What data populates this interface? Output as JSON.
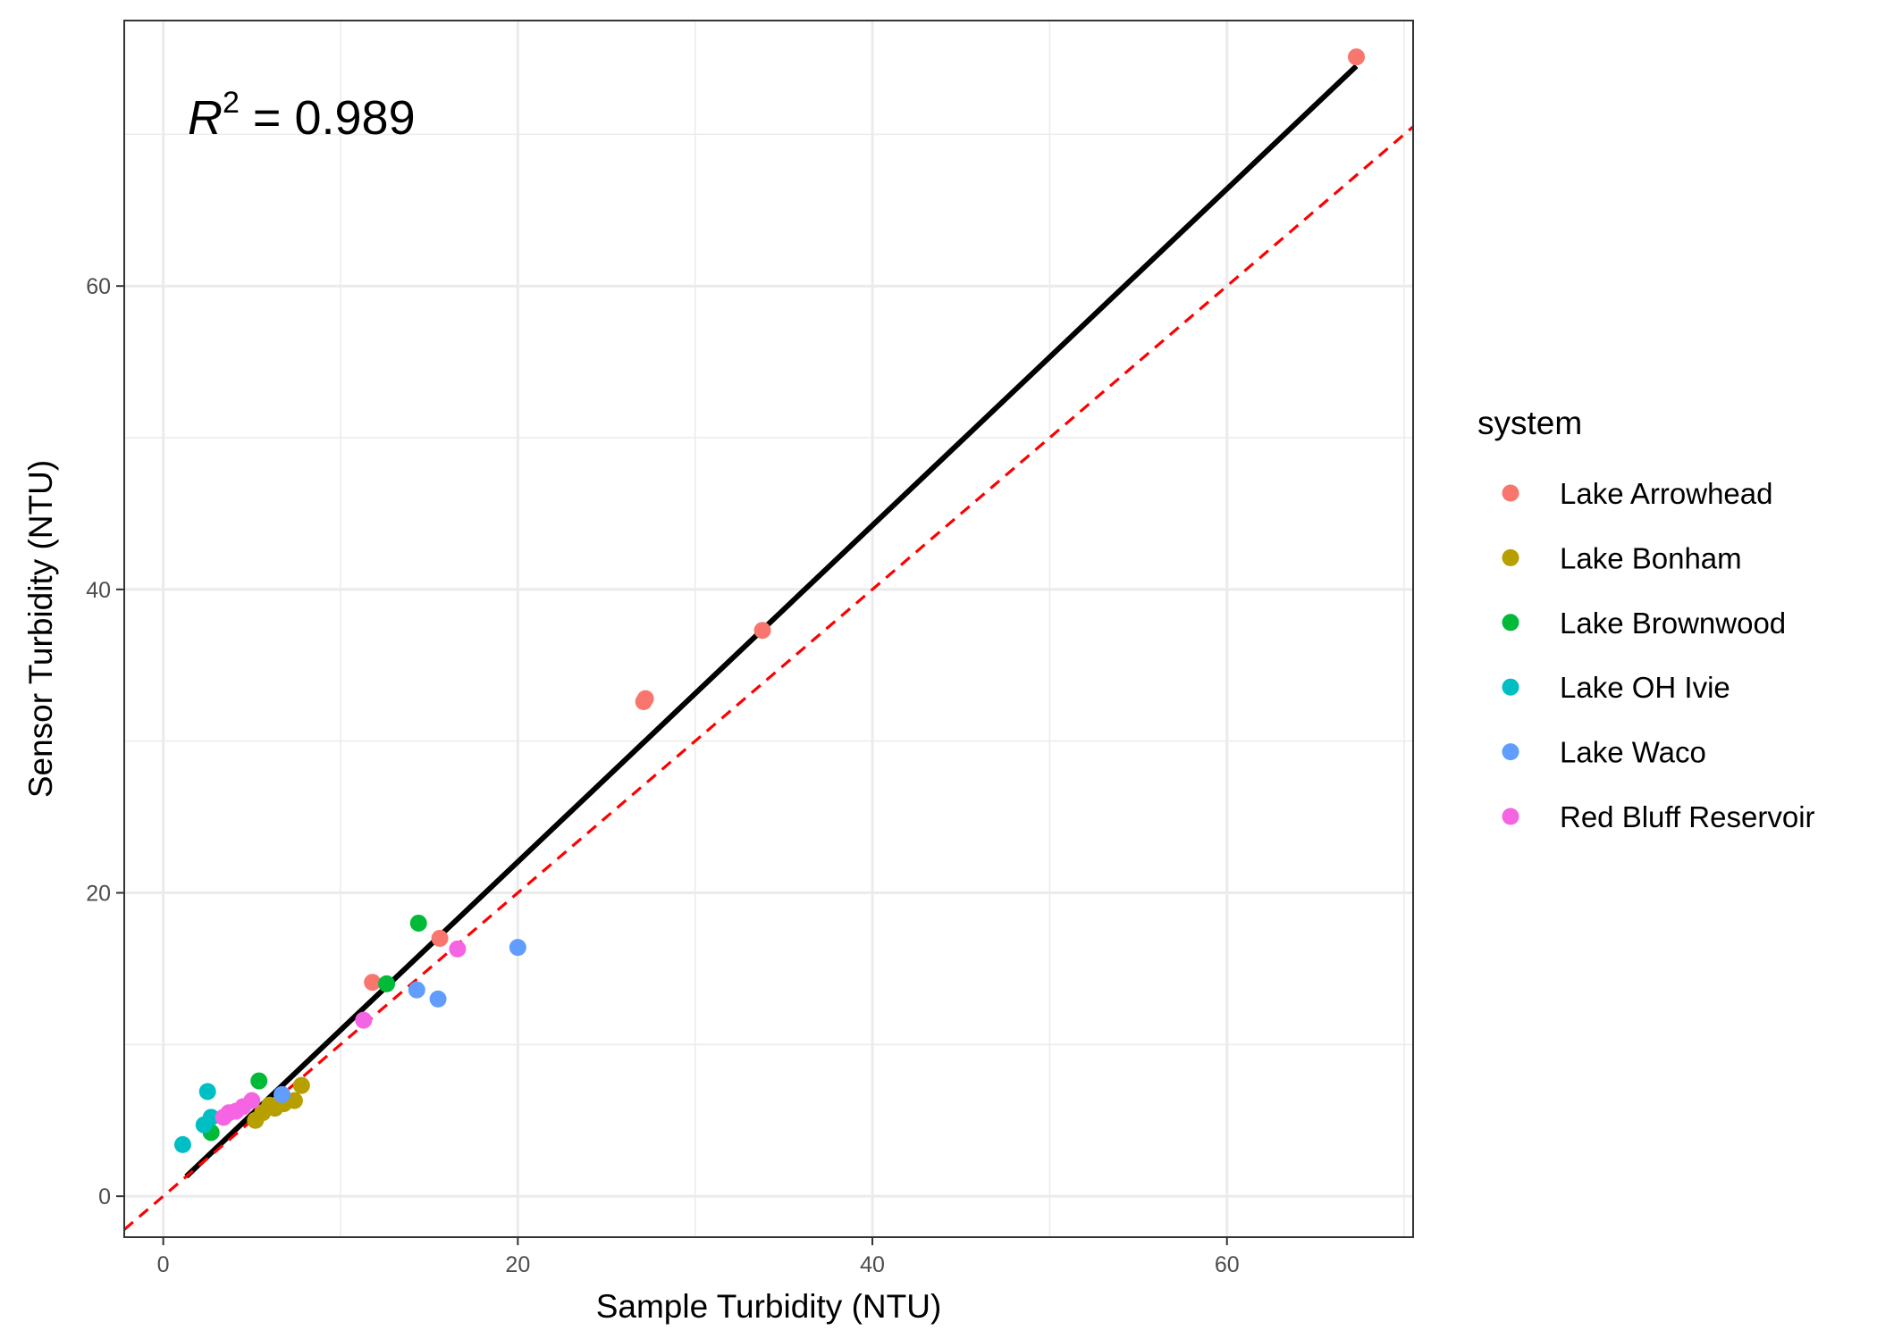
{
  "chart_data": {
    "type": "scatter",
    "xlabel": "Sample Turbidity (NTU)",
    "ylabel": "Sensor Turbidity (NTU)",
    "xlim": [
      -2.2,
      70.5
    ],
    "ylim": [
      -2.7,
      77.5
    ],
    "x_ticks": [
      0,
      20,
      40,
      60
    ],
    "y_ticks": [
      0,
      20,
      40,
      60
    ],
    "grid": true,
    "annotation": {
      "symbol": "R",
      "superscript": "2",
      "text": " = 0.989"
    },
    "legend": {
      "title": "system",
      "position": "right"
    },
    "series": [
      {
        "name": "Lake Arrowhead",
        "color": "#F8766D",
        "x": [
          67.3,
          33.8,
          27.2,
          27.1,
          15.6,
          11.8
        ],
        "y": [
          75.1,
          37.3,
          32.8,
          32.6,
          17.0,
          14.1
        ]
      },
      {
        "name": "Lake Bonham",
        "color": "#B79F00",
        "x": [
          7.8,
          7.4,
          6.8,
          6.3,
          5.2,
          6.0,
          5.6
        ],
        "y": [
          7.3,
          6.3,
          6.1,
          5.8,
          5.0,
          6.0,
          5.5
        ]
      },
      {
        "name": "Lake Brownwood",
        "color": "#00BA38",
        "x": [
          14.4,
          12.6,
          5.4,
          2.7
        ],
        "y": [
          18.0,
          14.0,
          7.6,
          4.2
        ]
      },
      {
        "name": "Lake OH Ivie",
        "color": "#00BFC4",
        "x": [
          2.5,
          2.7,
          2.3,
          1.1
        ],
        "y": [
          6.9,
          5.2,
          4.7,
          3.4
        ]
      },
      {
        "name": "Lake Waco",
        "color": "#619CFF",
        "x": [
          20.0,
          14.3,
          15.5,
          6.7
        ],
        "y": [
          16.4,
          13.6,
          13.0,
          6.7
        ]
      },
      {
        "name": "Red Bluff Reservoir",
        "color": "#F564E3",
        "x": [
          16.6,
          11.3,
          5.0,
          4.5,
          4.1,
          3.7,
          3.4
        ],
        "y": [
          16.3,
          11.6,
          6.3,
          5.9,
          5.6,
          5.5,
          5.2
        ]
      }
    ],
    "reference_lines": [
      {
        "kind": "regression",
        "color": "#000000",
        "style": "solid",
        "x": [
          1.3,
          67.3
        ],
        "y": [
          1.3,
          74.5
        ]
      },
      {
        "kind": "identity",
        "color": "#FF0000",
        "style": "dashed",
        "x": [
          -2.2,
          70.5
        ],
        "y": [
          -2.2,
          70.5
        ]
      }
    ]
  }
}
